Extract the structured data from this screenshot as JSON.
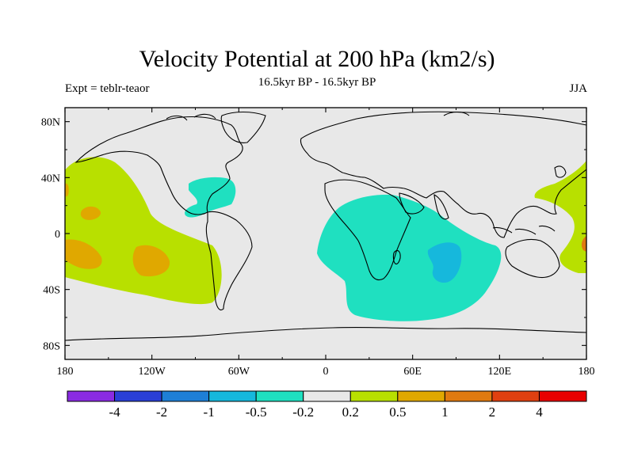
{
  "title": "Velocity Potential at 200 hPa (km2/s)",
  "subtitle": "16.5kyr BP - 16.5kyr BP",
  "left_label": "Expt = teblr-teaor",
  "right_label": "JJA",
  "lat_ticks": [
    "80N",
    "40N",
    "0",
    "40S",
    "80S"
  ],
  "lon_ticks": [
    "180",
    "120W",
    "60W",
    "0",
    "60E",
    "120E",
    "180"
  ],
  "colorbar": {
    "colors": [
      "#8a2be2",
      "#2a3fd6",
      "#1e7fd6",
      "#16b8dc",
      "#1fe0c0",
      "#e8e8e8",
      "#b8e000",
      "#e0a800",
      "#e07a10",
      "#e04010",
      "#e80000"
    ],
    "labels": [
      "-4",
      "-2",
      "-1",
      "-0.5",
      "-0.2",
      "0.2",
      "0.5",
      "1",
      "2",
      "4"
    ]
  },
  "colors": {
    "land_sea_background": "#e8e8e8",
    "positive_weak": "#b8e000",
    "positive_mid": "#e0a800",
    "negative_weak": "#1fe0c0",
    "negative_mid": "#16b8dc"
  }
}
